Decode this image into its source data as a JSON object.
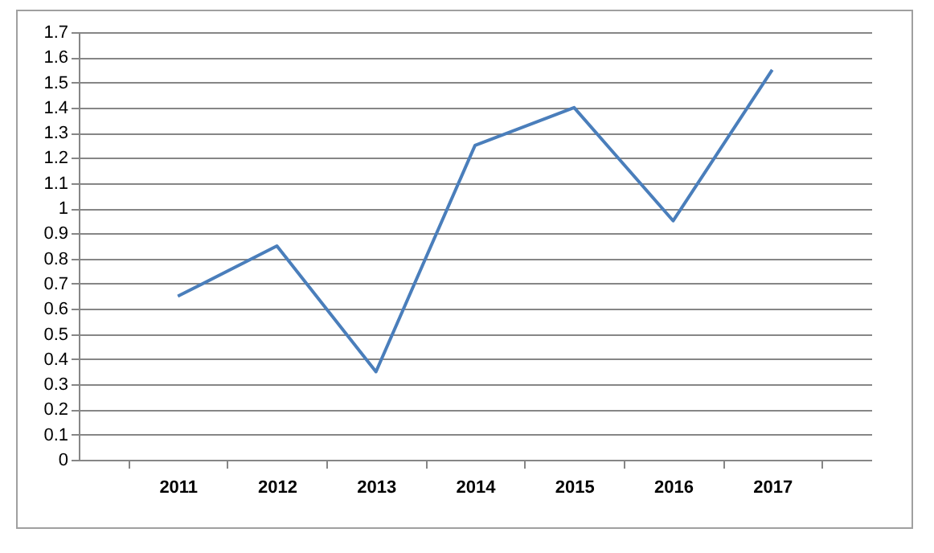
{
  "chart_data": {
    "type": "line",
    "categories": [
      "2011",
      "2012",
      "2013",
      "2014",
      "2015",
      "2016",
      "2017"
    ],
    "series": [
      {
        "color": "#4a7ebb",
        "values": [
          0.65,
          0.85,
          0.35,
          1.25,
          1.4,
          0.95,
          1.55
        ]
      }
    ],
    "ylim": [
      0,
      1.7
    ],
    "yticks": [
      0,
      0.1,
      0.2,
      0.3,
      0.4,
      0.5,
      0.6,
      0.7,
      0.8,
      0.9,
      1,
      1.1,
      1.2,
      1.3,
      1.4,
      1.5,
      1.6,
      1.7
    ],
    "grid": "y",
    "marker": "none",
    "line_style": "solid"
  }
}
